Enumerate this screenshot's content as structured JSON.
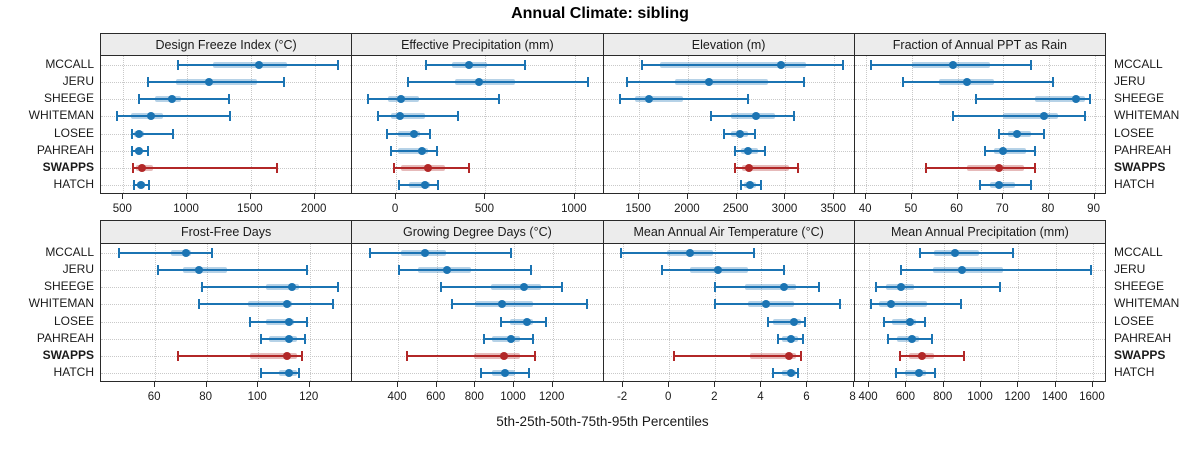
{
  "title": "Annual Climate: sibling",
  "axis_title": "5th-25th-50th-75th-95th Percentiles",
  "sites": [
    "MCCALL",
    "JERU",
    "SHEEGE",
    "WHITEMAN",
    "LOSEE",
    "PAHREAH",
    "SWAPPS",
    "HATCH"
  ],
  "highlight_site": "SWAPPS",
  "colors": {
    "series": "#1b74b3",
    "series_band": "rgba(27,116,179,0.32)",
    "highlight": "#b22727",
    "highlight_band": "rgba(178,39,39,0.32)",
    "strip_bg": "#ececec",
    "panel_border": "#2a2a2a",
    "grid": "#c9c9c9"
  },
  "chart_data": [
    {
      "type": "dotplot-percentiles",
      "row": 0,
      "col": 0,
      "title": "Design Freeze Index (°C)",
      "xlim": [
        325,
        2295
      ],
      "ticks": [
        500,
        1000,
        1500,
        2000
      ],
      "percentile_labels": [
        "p5",
        "p25",
        "p50",
        "p75",
        "p95"
      ],
      "values": {
        "MCCALL": [
          930,
          1200,
          1565,
          1780,
          2180
        ],
        "JERU": [
          690,
          910,
          1170,
          1545,
          1760
        ],
        "SHEEGE": [
          620,
          750,
          885,
          955,
          1325
        ],
        "WHITEMAN": [
          450,
          560,
          720,
          810,
          1340
        ],
        "LOSEE": [
          565,
          585,
          620,
          660,
          890
        ],
        "PAHREAH": [
          570,
          595,
          620,
          650,
          695
        ],
        "SWAPPS": [
          575,
          600,
          650,
          730,
          1705
        ],
        "HATCH": [
          585,
          605,
          635,
          670,
          705
        ]
      }
    },
    {
      "type": "dotplot-percentiles",
      "row": 0,
      "col": 1,
      "title": "Effective Precipitation (mm)",
      "xlim": [
        -245,
        1160
      ],
      "ticks": [
        0,
        500,
        1000
      ],
      "percentile_labels": [
        "p5",
        "p25",
        "p50",
        "p75",
        "p95"
      ],
      "values": {
        "MCCALL": [
          165,
          315,
          410,
          510,
          720
        ],
        "JERU": [
          65,
          330,
          465,
          665,
          1075
        ],
        "SHEEGE": [
          -155,
          -45,
          25,
          130,
          575
        ],
        "WHITEMAN": [
          -100,
          -30,
          20,
          160,
          345
        ],
        "LOSEE": [
          -50,
          10,
          100,
          135,
          190
        ],
        "PAHREAH": [
          -30,
          10,
          145,
          180,
          230
        ],
        "SWAPPS": [
          -10,
          30,
          180,
          275,
          410
        ],
        "HATCH": [
          15,
          75,
          160,
          190,
          235
        ]
      }
    },
    {
      "type": "dotplot-percentiles",
      "row": 0,
      "col": 2,
      "title": "Elevation (m)",
      "xlim": [
        1135,
        3710
      ],
      "ticks": [
        1500,
        2000,
        2500,
        3000,
        3500
      ],
      "percentile_labels": [
        "p5",
        "p25",
        "p50",
        "p75",
        "p95"
      ],
      "values": {
        "MCCALL": [
          1525,
          1710,
          2950,
          3210,
          3585
        ],
        "JERU": [
          1375,
          1865,
          2220,
          2825,
          3185
        ],
        "SHEEGE": [
          1300,
          1455,
          1600,
          1950,
          2615
        ],
        "WHITEMAN": [
          2240,
          2445,
          2695,
          2890,
          3085
        ],
        "LOSEE": [
          2370,
          2445,
          2530,
          2615,
          2685
        ],
        "PAHREAH": [
          2480,
          2545,
          2620,
          2715,
          2790
        ],
        "SWAPPS": [
          2480,
          2550,
          2630,
          3040,
          3125
        ],
        "HATCH": [
          2540,
          2580,
          2640,
          2700,
          2745
        ]
      }
    },
    {
      "type": "dotplot-percentiles",
      "row": 0,
      "col": 3,
      "title": "Fraction of Annual PPT as Rain",
      "xlim": [
        37.5,
        92.5
      ],
      "ticks": [
        40,
        50,
        60,
        70,
        80,
        90
      ],
      "percentile_labels": [
        "p5",
        "p25",
        "p50",
        "p75",
        "p95"
      ],
      "values": {
        "MCCALL": [
          41,
          50,
          59,
          67,
          76
        ],
        "JERU": [
          48,
          56,
          62,
          68,
          81
        ],
        "SHEEGE": [
          64,
          77,
          86,
          88,
          89
        ],
        "WHITEMAN": [
          59,
          70,
          79,
          82,
          88
        ],
        "LOSEE": [
          69,
          71,
          73,
          76,
          79
        ],
        "PAHREAH": [
          66,
          68,
          70,
          75,
          77
        ],
        "SWAPPS": [
          53,
          62,
          69,
          74.5,
          77
        ],
        "HATCH": [
          65,
          67,
          69,
          72.5,
          76
        ]
      }
    },
    {
      "type": "dotplot-percentiles",
      "row": 1,
      "col": 0,
      "title": "Frost-Free Days",
      "xlim": [
        39,
        136.5
      ],
      "ticks": [
        60,
        80,
        100,
        120
      ],
      "percentile_labels": [
        "p5",
        "p25",
        "p50",
        "p75",
        "p95"
      ],
      "values": {
        "MCCALL": [
          46,
          66,
          72,
          74,
          82
        ],
        "JERU": [
          61,
          71,
          77,
          88,
          119
        ],
        "SHEEGE": [
          78,
          103,
          113,
          116,
          131
        ],
        "WHITEMAN": [
          77,
          96,
          111,
          113,
          129
        ],
        "LOSEE": [
          97,
          103,
          112,
          114,
          119
        ],
        "PAHREAH": [
          101,
          104,
          112,
          115,
          118
        ],
        "SWAPPS": [
          69,
          97,
          111,
          115,
          117
        ],
        "HATCH": [
          101,
          108,
          112,
          115,
          116
        ]
      }
    },
    {
      "type": "dotplot-percentiles",
      "row": 1,
      "col": 1,
      "title": "Growing Degree Days (°C)",
      "xlim": [
        163,
        1463
      ],
      "ticks": [
        400,
        600,
        800,
        1000,
        1200
      ],
      "percentile_labels": [
        "p5",
        "p25",
        "p50",
        "p75",
        "p95"
      ],
      "values": {
        "MCCALL": [
          255,
          415,
          540,
          650,
          985
        ],
        "JERU": [
          405,
          505,
          655,
          775,
          1090
        ],
        "SHEEGE": [
          620,
          880,
          1050,
          1140,
          1250
        ],
        "WHITEMAN": [
          680,
          800,
          940,
          1100,
          1380
        ],
        "LOSEE": [
          935,
          980,
          1065,
          1100,
          1165
        ],
        "PAHREAH": [
          845,
          885,
          985,
          1030,
          1100
        ],
        "SWAPPS": [
          445,
          795,
          950,
          1030,
          1110
        ],
        "HATCH": [
          830,
          885,
          955,
          1005,
          1080
        ]
      }
    },
    {
      "type": "dotplot-percentiles",
      "row": 1,
      "col": 2,
      "title": "Mean Annual Air Temperature (°C)",
      "xlim": [
        -2.85,
        8.05
      ],
      "ticks": [
        -2,
        0,
        2,
        4,
        6,
        8
      ],
      "percentile_labels": [
        "p5",
        "p25",
        "p50",
        "p75",
        "p95"
      ],
      "values": {
        "MCCALL": [
          -2.1,
          -0.1,
          0.9,
          1.9,
          3.7
        ],
        "JERU": [
          -0.3,
          0.9,
          2.1,
          3.4,
          5.0
        ],
        "SHEEGE": [
          2.0,
          3.3,
          5.0,
          5.5,
          6.5
        ],
        "WHITEMAN": [
          2.0,
          3.4,
          4.2,
          5.4,
          7.4
        ],
        "LOSEE": [
          4.3,
          4.5,
          5.4,
          5.7,
          5.9
        ],
        "PAHREAH": [
          4.7,
          4.9,
          5.3,
          5.6,
          5.8
        ],
        "SWAPPS": [
          0.2,
          3.5,
          5.2,
          5.5,
          5.7
        ],
        "HATCH": [
          4.5,
          4.9,
          5.3,
          5.5,
          5.6
        ]
      }
    },
    {
      "type": "dotplot-percentiles",
      "row": 1,
      "col": 3,
      "title": "Mean Annual Precipitation (mm)",
      "xlim": [
        323,
        1670
      ],
      "ticks": [
        400,
        600,
        800,
        1000,
        1200,
        1400,
        1600
      ],
      "percentile_labels": [
        "p5",
        "p25",
        "p50",
        "p75",
        "p95"
      ],
      "values": {
        "MCCALL": [
          675,
          750,
          860,
          990,
          1170
        ],
        "JERU": [
          570,
          740,
          900,
          1120,
          1590
        ],
        "SHEEGE": [
          435,
          490,
          570,
          640,
          1100
        ],
        "WHITEMAN": [
          410,
          455,
          515,
          710,
          895
        ],
        "LOSEE": [
          480,
          525,
          620,
          650,
          700
        ],
        "PAHREAH": [
          500,
          550,
          630,
          670,
          735
        ],
        "SWAPPS": [
          565,
          615,
          685,
          750,
          910
        ],
        "HATCH": [
          545,
          590,
          670,
          705,
          755
        ]
      }
    }
  ]
}
